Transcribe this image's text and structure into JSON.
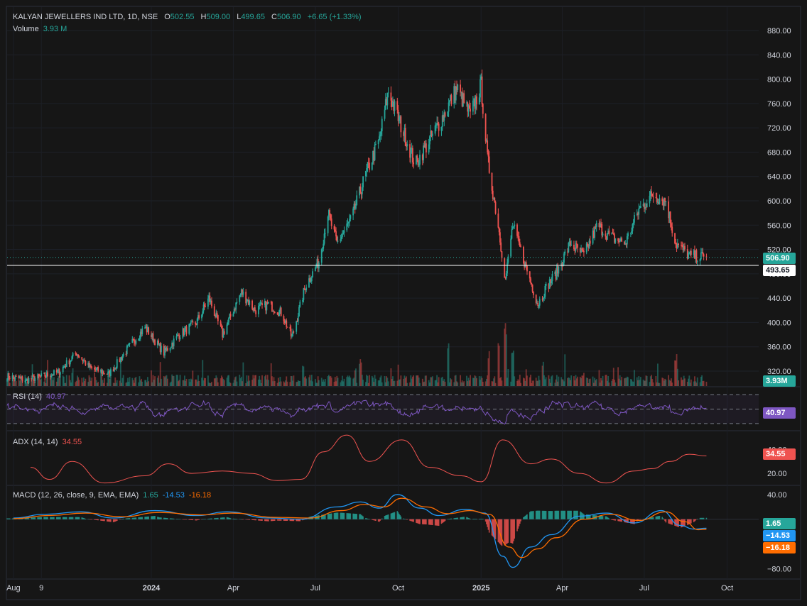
{
  "header": {
    "symbol": "KALYAN JEWELLERS IND LTD, 1D, NSE",
    "o_label": "O",
    "o_value": "502.55",
    "h_label": "H",
    "h_value": "509.00",
    "l_label": "L",
    "l_value": "499.65",
    "c_label": "C",
    "c_value": "506.90",
    "change": "+6.65 (+1.33%)",
    "volume_label": "Volume",
    "volume_value": "3.93 M"
  },
  "indicators": {
    "rsi_label": "RSI (14)",
    "rsi_value": "40.97",
    "adx_label": "ADX (14, 14)",
    "adx_value": "34.55",
    "macd_label": "MACD (12, 26, close, 9, EMA, EMA)",
    "macd_hist": "1.65",
    "macd_line": "-14.53",
    "macd_signal": "-16.18"
  },
  "price_tags": {
    "last": "506.90",
    "line": "493.65",
    "volume": "3.93M",
    "rsi": "40.97",
    "adx": "34.55",
    "macd_hist": "1.65",
    "macd_line": "−14.53",
    "macd_signal": "−16.18"
  },
  "colors": {
    "up": "#26a69a",
    "down": "#ef5350",
    "rsi": "#7e57c2",
    "adx": "#ef5350",
    "macd": "#2196f3",
    "signal": "#ff6d00",
    "bg": "#161616"
  },
  "chart_data": [
    {
      "type": "candlestick",
      "title": "KALYAN JEWELLERS IND LTD, 1D, NSE",
      "price_ticks": [
        "880.00",
        "840.00",
        "800.00",
        "760.00",
        "720.00",
        "680.00",
        "640.00",
        "600.00",
        "560.00",
        "520.00",
        "480.00",
        "440.00",
        "400.00",
        "360.00",
        "320.00"
      ],
      "ylim": [
        310,
        890
      ],
      "x_ticks": [
        "Aug",
        "9",
        "2024",
        "Apr",
        "Jul",
        "Oct",
        "2025",
        "Apr",
        "Jul",
        "Oct"
      ],
      "x_tick_dates": [
        "2023-08-01",
        "2023-09-01",
        "2024-01-01",
        "2024-04-01",
        "2024-07-01",
        "2024-10-01",
        "2025-01-01",
        "2025-04-01",
        "2025-07-01",
        "2025-10-01"
      ],
      "date_range": [
        "2023-07-25",
        "2025-09-08"
      ],
      "price_path": [
        {
          "date": "2023-07-25",
          "close": 312
        },
        {
          "date": "2023-08-15",
          "close": 305
        },
        {
          "date": "2023-09-20",
          "close": 318
        },
        {
          "date": "2023-10-10",
          "close": 350
        },
        {
          "date": "2023-10-25",
          "close": 325
        },
        {
          "date": "2023-11-15",
          "close": 315
        },
        {
          "date": "2023-12-10",
          "close": 365
        },
        {
          "date": "2023-12-25",
          "close": 392
        },
        {
          "date": "2024-01-15",
          "close": 350
        },
        {
          "date": "2024-02-01",
          "close": 380
        },
        {
          "date": "2024-02-20",
          "close": 400
        },
        {
          "date": "2024-03-05",
          "close": 440
        },
        {
          "date": "2024-03-20",
          "close": 380
        },
        {
          "date": "2024-04-10",
          "close": 450
        },
        {
          "date": "2024-04-25",
          "close": 420
        },
        {
          "date": "2024-05-10",
          "close": 430
        },
        {
          "date": "2024-05-25",
          "close": 415
        },
        {
          "date": "2024-06-05",
          "close": 375
        },
        {
          "date": "2024-06-20",
          "close": 460
        },
        {
          "date": "2024-07-05",
          "close": 500
        },
        {
          "date": "2024-07-15",
          "close": 580
        },
        {
          "date": "2024-07-25",
          "close": 530
        },
        {
          "date": "2024-08-10",
          "close": 570
        },
        {
          "date": "2024-08-25",
          "close": 640
        },
        {
          "date": "2024-09-10",
          "close": 700
        },
        {
          "date": "2024-09-20",
          "close": 780
        },
        {
          "date": "2024-10-05",
          "close": 720
        },
        {
          "date": "2024-10-20",
          "close": 660
        },
        {
          "date": "2024-11-05",
          "close": 700
        },
        {
          "date": "2024-11-20",
          "close": 740
        },
        {
          "date": "2024-12-05",
          "close": 785
        },
        {
          "date": "2024-12-20",
          "close": 740
        },
        {
          "date": "2025-01-01",
          "close": 790
        },
        {
          "date": "2025-01-08",
          "close": 670
        },
        {
          "date": "2025-01-20",
          "close": 560
        },
        {
          "date": "2025-01-28",
          "close": 470
        },
        {
          "date": "2025-02-05",
          "close": 560
        },
        {
          "date": "2025-02-20",
          "close": 490
        },
        {
          "date": "2025-03-05",
          "close": 430
        },
        {
          "date": "2025-03-15",
          "close": 460
        },
        {
          "date": "2025-03-25",
          "close": 480
        },
        {
          "date": "2025-04-10",
          "close": 530
        },
        {
          "date": "2025-04-25",
          "close": 510
        },
        {
          "date": "2025-05-10",
          "close": 560
        },
        {
          "date": "2025-05-25",
          "close": 540
        },
        {
          "date": "2025-06-10",
          "close": 530
        },
        {
          "date": "2025-06-25",
          "close": 585
        },
        {
          "date": "2025-07-10",
          "close": 610
        },
        {
          "date": "2025-07-25",
          "close": 600
        },
        {
          "date": "2025-08-05",
          "close": 530
        },
        {
          "date": "2025-08-20",
          "close": 510
        },
        {
          "date": "2025-09-08",
          "close": 506.9
        }
      ],
      "last_close": 506.9,
      "horizontal_line": 493.65
    },
    {
      "type": "bar",
      "title": "Volume",
      "last_value": "3.93 M",
      "spikes": [
        {
          "date": "2024-08-20",
          "rel": 0.45
        },
        {
          "date": "2024-11-25",
          "rel": 0.75
        },
        {
          "date": "2025-01-10",
          "rel": 0.55
        },
        {
          "date": "2025-01-20",
          "rel": 0.8
        },
        {
          "date": "2025-01-28",
          "rel": 1.0
        },
        {
          "date": "2025-02-05",
          "rel": 0.6
        },
        {
          "date": "2025-03-10",
          "rel": 0.4
        },
        {
          "date": "2025-04-05",
          "rel": 0.55
        },
        {
          "date": "2025-08-05",
          "rel": 0.5
        }
      ]
    },
    {
      "type": "line",
      "title": "RSI (14)",
      "last_value": 40.97,
      "bands": [
        30,
        50,
        70
      ],
      "ylim": [
        20,
        80
      ]
    },
    {
      "type": "line",
      "title": "ADX (14, 14)",
      "y_ticks": [
        "40.00",
        "20.00"
      ],
      "ylim": [
        10,
        55
      ],
      "last_value": 34.55,
      "path": [
        {
          "date": "2023-08-20",
          "y": 25
        },
        {
          "date": "2023-09-10",
          "y": 15
        },
        {
          "date": "2023-10-05",
          "y": 30
        },
        {
          "date": "2023-11-10",
          "y": 12
        },
        {
          "date": "2023-12-25",
          "y": 18
        },
        {
          "date": "2024-01-20",
          "y": 28
        },
        {
          "date": "2024-02-15",
          "y": 20
        },
        {
          "date": "2024-03-20",
          "y": 22
        },
        {
          "date": "2024-04-20",
          "y": 20
        },
        {
          "date": "2024-05-20",
          "y": 14
        },
        {
          "date": "2024-06-15",
          "y": 15
        },
        {
          "date": "2024-07-10",
          "y": 38
        },
        {
          "date": "2024-08-05",
          "y": 52
        },
        {
          "date": "2024-08-30",
          "y": 30
        },
        {
          "date": "2024-10-05",
          "y": 48
        },
        {
          "date": "2024-11-05",
          "y": 25
        },
        {
          "date": "2024-12-10",
          "y": 18
        },
        {
          "date": "2025-01-01",
          "y": 13
        },
        {
          "date": "2025-01-25",
          "y": 48
        },
        {
          "date": "2025-02-25",
          "y": 28
        },
        {
          "date": "2025-03-20",
          "y": 32
        },
        {
          "date": "2025-04-20",
          "y": 20
        },
        {
          "date": "2025-05-20",
          "y": 12
        },
        {
          "date": "2025-06-20",
          "y": 22
        },
        {
          "date": "2025-07-10",
          "y": 24
        },
        {
          "date": "2025-07-30",
          "y": 30
        },
        {
          "date": "2025-08-20",
          "y": 36
        },
        {
          "date": "2025-09-08",
          "y": 34.55
        }
      ]
    },
    {
      "type": "line",
      "title": "MACD (12, 26, close, 9, EMA, EMA)",
      "y_ticks": [
        "40.00",
        "−80.00"
      ],
      "ylim": [
        -90,
        48
      ],
      "series": [
        {
          "name": "MACD",
          "last_value": -14.53
        },
        {
          "name": "Signal",
          "last_value": -16.18
        },
        {
          "name": "Histogram",
          "last_value": 1.65
        }
      ],
      "macd_path": [
        {
          "date": "2023-08-01",
          "y": 2
        },
        {
          "date": "2023-09-05",
          "y": 8
        },
        {
          "date": "2023-10-15",
          "y": 12
        },
        {
          "date": "2023-11-20",
          "y": 2
        },
        {
          "date": "2024-01-05",
          "y": 14
        },
        {
          "date": "2024-02-20",
          "y": 6
        },
        {
          "date": "2024-03-25",
          "y": 12
        },
        {
          "date": "2024-05-10",
          "y": 2
        },
        {
          "date": "2024-06-15",
          "y": 0
        },
        {
          "date": "2024-07-25",
          "y": 20
        },
        {
          "date": "2024-08-20",
          "y": 28
        },
        {
          "date": "2024-09-10",
          "y": 18
        },
        {
          "date": "2024-09-30",
          "y": 40
        },
        {
          "date": "2024-10-25",
          "y": 18
        },
        {
          "date": "2024-11-15",
          "y": 6
        },
        {
          "date": "2024-12-15",
          "y": 16
        },
        {
          "date": "2025-01-05",
          "y": 10
        },
        {
          "date": "2025-01-25",
          "y": -60
        },
        {
          "date": "2025-02-05",
          "y": -78
        },
        {
          "date": "2025-02-25",
          "y": -45
        },
        {
          "date": "2025-03-20",
          "y": -25
        },
        {
          "date": "2025-04-20",
          "y": 5
        },
        {
          "date": "2025-05-20",
          "y": 10
        },
        {
          "date": "2025-06-20",
          "y": -6
        },
        {
          "date": "2025-07-20",
          "y": 14
        },
        {
          "date": "2025-08-10",
          "y": -10
        },
        {
          "date": "2025-08-25",
          "y": -16
        },
        {
          "date": "2025-09-08",
          "y": -14.53
        }
      ],
      "signal_path": [
        {
          "date": "2023-08-01",
          "y": 1
        },
        {
          "date": "2023-09-10",
          "y": 6
        },
        {
          "date": "2023-10-20",
          "y": 10
        },
        {
          "date": "2023-11-30",
          "y": 4
        },
        {
          "date": "2024-01-10",
          "y": 11
        },
        {
          "date": "2024-02-25",
          "y": 7
        },
        {
          "date": "2024-03-30",
          "y": 10
        },
        {
          "date": "2024-05-20",
          "y": 3
        },
        {
          "date": "2024-06-25",
          "y": 2
        },
        {
          "date": "2024-07-30",
          "y": 14
        },
        {
          "date": "2024-08-25",
          "y": 24
        },
        {
          "date": "2024-09-15",
          "y": 20
        },
        {
          "date": "2024-10-05",
          "y": 34
        },
        {
          "date": "2024-11-01",
          "y": 20
        },
        {
          "date": "2024-11-25",
          "y": 9
        },
        {
          "date": "2024-12-20",
          "y": 14
        },
        {
          "date": "2025-01-10",
          "y": 8
        },
        {
          "date": "2025-02-01",
          "y": -45
        },
        {
          "date": "2025-02-15",
          "y": -62
        },
        {
          "date": "2025-03-05",
          "y": -48
        },
        {
          "date": "2025-03-25",
          "y": -30
        },
        {
          "date": "2025-04-25",
          "y": 0
        },
        {
          "date": "2025-05-25",
          "y": 8
        },
        {
          "date": "2025-06-25",
          "y": -2
        },
        {
          "date": "2025-07-25",
          "y": 12
        },
        {
          "date": "2025-08-15",
          "y": -4
        },
        {
          "date": "2025-08-30",
          "y": -17
        },
        {
          "date": "2025-09-08",
          "y": -16.18
        }
      ]
    }
  ]
}
